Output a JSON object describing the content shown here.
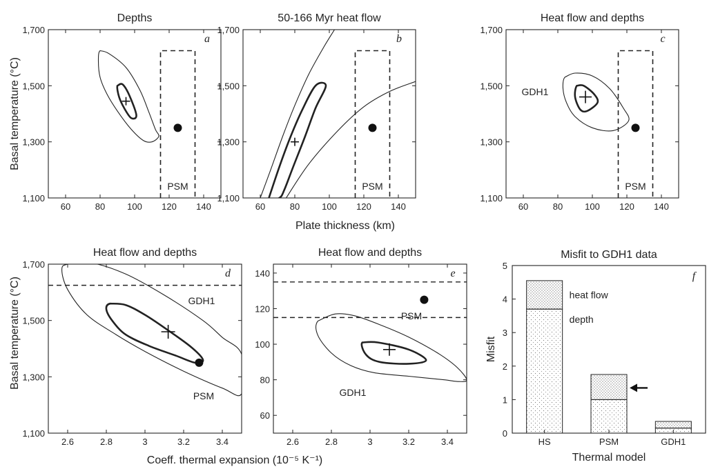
{
  "figure": {
    "shared_xlabel_top": "Plate thickness (km)",
    "shared_xlabel_bottom": "Coeff. thermal expansion (10⁻⁵ K⁻¹)"
  },
  "chart_data": [
    {
      "type": "scatter",
      "panel": "a",
      "title": "Depths",
      "xlabel": "Plate thickness (km)",
      "ylabel": "Basal temperature (°C)",
      "xlim": [
        50,
        150
      ],
      "ylim": [
        1100,
        1700
      ],
      "xticks": [
        60,
        80,
        100,
        120,
        140
      ],
      "yticks": [
        1100,
        1300,
        1500,
        1700
      ],
      "ytick_labels": [
        "1,100",
        "1,300",
        "1,500",
        "1,700"
      ],
      "best_fit": {
        "x": 95,
        "y": 1445
      },
      "psm_point": {
        "x": 125,
        "y": 1350
      },
      "psm_box": {
        "x": [
          115,
          135
        ],
        "y": [
          1100,
          1625
        ],
        "label": "PSM"
      },
      "contours": [
        {
          "level": "inner",
          "points": [
            [
              90,
              1500
            ],
            [
              93,
              1505
            ],
            [
              97,
              1465
            ],
            [
              101,
              1395
            ],
            [
              98,
              1385
            ],
            [
              94,
              1420
            ],
            [
              91,
              1460
            ]
          ]
        },
        {
          "level": "outer",
          "points": [
            [
              80,
              1625
            ],
            [
              85,
              1615
            ],
            [
              95,
              1565
            ],
            [
              103,
              1485
            ],
            [
              108,
              1410
            ],
            [
              112,
              1345
            ],
            [
              114,
              1320
            ],
            [
              110,
              1300
            ],
            [
              105,
              1305
            ],
            [
              98,
              1345
            ],
            [
              90,
              1410
            ],
            [
              84,
              1470
            ],
            [
              80,
              1530
            ],
            [
              79,
              1590
            ]
          ]
        }
      ]
    },
    {
      "type": "scatter",
      "panel": "b",
      "title": "50-166 Myr heat flow",
      "xlabel": "Plate thickness (km)",
      "xlim": [
        50,
        150
      ],
      "ylim": [
        1100,
        1700
      ],
      "xticks": [
        60,
        80,
        100,
        120,
        140
      ],
      "yticks": [
        1100,
        1300,
        1500,
        1700
      ],
      "ytick_labels": [
        "1,100",
        "1,300",
        "1,500",
        "1,700"
      ],
      "best_fit": {
        "x": 80,
        "y": 1300
      },
      "psm_point": {
        "x": 125,
        "y": 1350
      },
      "psm_box": {
        "x": [
          115,
          135
        ],
        "y": [
          1100,
          1625
        ],
        "label": "PSM"
      },
      "contours": [
        {
          "level": "outer-left",
          "points": [
            [
              60,
              1100
            ],
            [
              66,
              1200
            ],
            [
              73,
              1320
            ],
            [
              80,
              1430
            ],
            [
              88,
              1540
            ],
            [
              97,
              1640
            ],
            [
              103,
              1700
            ]
          ]
        },
        {
          "level": "outer-right",
          "points": [
            [
              75,
              1100
            ],
            [
              88,
              1220
            ],
            [
              105,
              1340
            ],
            [
              120,
              1425
            ],
            [
              135,
              1480
            ],
            [
              150,
              1515
            ]
          ]
        },
        {
          "level": "inner",
          "points": [
            [
              65,
              1100
            ],
            [
              71,
              1210
            ],
            [
              77,
              1310
            ],
            [
              84,
              1410
            ],
            [
              92,
              1500
            ],
            [
              98,
              1500
            ],
            [
              92,
              1420
            ],
            [
              86,
              1320
            ],
            [
              79,
              1210
            ],
            [
              74,
              1130
            ],
            [
              71,
              1100
            ]
          ]
        }
      ]
    },
    {
      "type": "scatter",
      "panel": "c",
      "title": "Heat flow and depths",
      "xlabel": "Plate thickness (km)",
      "xlim": [
        50,
        150
      ],
      "ylim": [
        1100,
        1700
      ],
      "xticks": [
        60,
        80,
        100,
        120,
        140
      ],
      "yticks": [
        1100,
        1300,
        1500,
        1700
      ],
      "ytick_labels": [
        "1,100",
        "1,300",
        "1,500",
        "1,700"
      ],
      "best_fit": {
        "x": 96,
        "y": 1460
      },
      "psm_point": {
        "x": 125,
        "y": 1350
      },
      "psm_box": {
        "x": [
          115,
          135
        ],
        "y": [
          1100,
          1625
        ],
        "label": "PSM"
      },
      "annotations": [
        "GDH1"
      ],
      "contours": [
        {
          "level": "inner",
          "points": [
            [
              91,
              1500
            ],
            [
              95,
              1500
            ],
            [
              101,
              1470
            ],
            [
              103,
              1440
            ],
            [
              97,
              1410
            ],
            [
              93,
              1415
            ],
            [
              90,
              1460
            ]
          ]
        },
        {
          "level": "outer",
          "points": [
            [
              84,
              1530
            ],
            [
              90,
              1545
            ],
            [
              100,
              1535
            ],
            [
              110,
              1490
            ],
            [
              118,
              1420
            ],
            [
              121,
              1375
            ],
            [
              112,
              1340
            ],
            [
              100,
              1350
            ],
            [
              90,
              1390
            ],
            [
              85,
              1440
            ],
            [
              83,
              1490
            ]
          ]
        }
      ]
    },
    {
      "type": "scatter",
      "panel": "d",
      "title": "Heat flow and depths",
      "xlabel": "Coeff. thermal expansion (10⁻⁵ K⁻¹)",
      "ylabel": "Basal temperature (°C)",
      "xlim": [
        2.5,
        3.5
      ],
      "ylim": [
        1100,
        1700
      ],
      "xticks": [
        2.6,
        2.8,
        3.0,
        3.2,
        3.4
      ],
      "yticks": [
        1100,
        1300,
        1500,
        1700
      ],
      "ytick_labels": [
        "1,100",
        "1,300",
        "1,500",
        "1,700"
      ],
      "best_fit": {
        "x": 3.12,
        "y": 1460
      },
      "psm_point": {
        "x": 3.28,
        "y": 1350
      },
      "psm_line": 1625,
      "annotations": [
        "GDH1",
        "PSM"
      ],
      "contours": [
        {
          "level": "inner",
          "points": [
            [
              2.82,
              1560
            ],
            [
              2.9,
              1555
            ],
            [
              3.0,
              1520
            ],
            [
              3.12,
              1465
            ],
            [
              3.24,
              1405
            ],
            [
              3.3,
              1360
            ],
            [
              3.26,
              1350
            ],
            [
              3.16,
              1375
            ],
            [
              3.02,
              1410
            ],
            [
              2.9,
              1450
            ],
            [
              2.83,
              1500
            ],
            [
              2.8,
              1540
            ]
          ]
        },
        {
          "level": "outer",
          "points": [
            [
              2.6,
              1700
            ],
            [
              2.72,
              1705
            ],
            [
              2.9,
              1665
            ],
            [
              3.1,
              1590
            ],
            [
              3.3,
              1500
            ],
            [
              3.4,
              1440
            ],
            [
              3.5,
              1380
            ],
            [
              3.5,
              1240
            ],
            [
              3.4,
              1260
            ],
            [
              3.2,
              1320
            ],
            [
              3.0,
              1390
            ],
            [
              2.85,
              1450
            ],
            [
              2.7,
              1520
            ],
            [
              2.6,
              1610
            ],
            [
              2.57,
              1680
            ]
          ]
        }
      ]
    },
    {
      "type": "scatter",
      "panel": "e",
      "title": "Heat flow and depths",
      "xlabel": "Coeff. thermal expansion (10⁻⁵ K⁻¹)",
      "xlim": [
        2.5,
        3.5
      ],
      "ylim": [
        50,
        145
      ],
      "xticks": [
        2.6,
        2.8,
        3.0,
        3.2,
        3.4
      ],
      "yticks": [
        60,
        80,
        100,
        120,
        140
      ],
      "best_fit": {
        "x": 3.1,
        "y": 97
      },
      "psm_point": {
        "x": 3.28,
        "y": 125
      },
      "psm_lines": [
        115,
        135
      ],
      "annotations": [
        "PSM",
        "GDH1"
      ],
      "contours": [
        {
          "level": "inner",
          "points": [
            [
              2.96,
              101
            ],
            [
              3.04,
              101
            ],
            [
              3.2,
              97
            ],
            [
              3.29,
              91
            ],
            [
              3.2,
              89
            ],
            [
              3.05,
              90
            ],
            [
              2.98,
              94
            ]
          ]
        },
        {
          "level": "outer",
          "points": [
            [
              2.73,
              113
            ],
            [
              2.82,
              117
            ],
            [
              2.92,
              116
            ],
            [
              3.05,
              111
            ],
            [
              3.2,
              104
            ],
            [
              3.35,
              95
            ],
            [
              3.45,
              87
            ],
            [
              3.5,
              80
            ],
            [
              3.46,
              79
            ],
            [
              3.38,
              80
            ],
            [
              3.2,
              82
            ],
            [
              3.02,
              84
            ],
            [
              2.9,
              88
            ],
            [
              2.8,
              95
            ],
            [
              2.73,
              105
            ]
          ]
        }
      ]
    },
    {
      "type": "bar",
      "panel": "f",
      "title": "Misfit to GDH1 data",
      "xlabel": "Thermal model",
      "ylabel": "Misfit",
      "categories": [
        "HS",
        "PSM",
        "GDH1"
      ],
      "ylim": [
        0,
        5
      ],
      "yticks": [
        0,
        1,
        2,
        3,
        4,
        5
      ],
      "ytick_labels": [
        "0",
        "1",
        "2",
        "3",
        "4",
        "5"
      ],
      "series": [
        {
          "name": "depth",
          "values": [
            3.7,
            1.0,
            0.15
          ]
        },
        {
          "name": "heat flow",
          "values": [
            0.85,
            0.75,
            0.2
          ]
        }
      ],
      "arrow_at": {
        "category": "PSM",
        "y": 1.35
      }
    }
  ]
}
